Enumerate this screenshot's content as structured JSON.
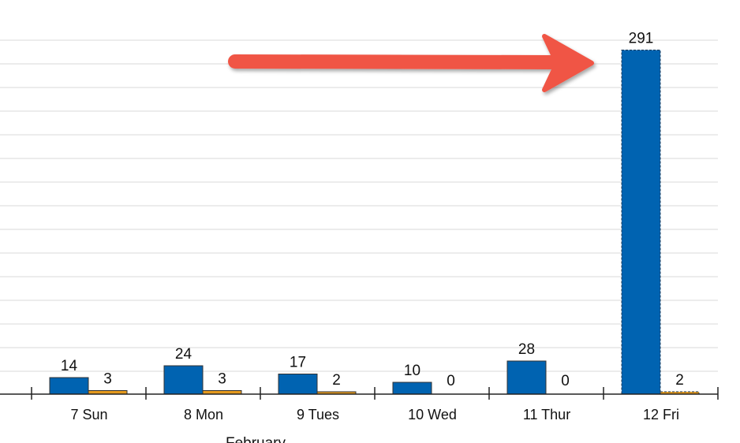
{
  "chart_data": {
    "type": "bar",
    "categories": [
      "7 Sun",
      "8 Mon",
      "9 Tues",
      "10 Wed",
      "11 Thur",
      "12 Fri"
    ],
    "group_label": "February",
    "series": [
      {
        "values": [
          14,
          24,
          17,
          10,
          28,
          291
        ],
        "color": "#0063B1"
      },
      {
        "values": [
          3,
          3,
          2,
          0,
          0,
          2
        ],
        "color": "#E59A1E"
      }
    ],
    "data_labels": {
      "s0": [
        "14",
        "24",
        "17",
        "10",
        "28",
        "291"
      ],
      "s1": [
        "3",
        "3",
        "2",
        "0",
        "0",
        "2"
      ]
    },
    "grid": true,
    "highlighted_category": "12 Fri",
    "annotation": {
      "type": "arrow",
      "color": "#F05545",
      "points_to": "12 Fri"
    }
  }
}
